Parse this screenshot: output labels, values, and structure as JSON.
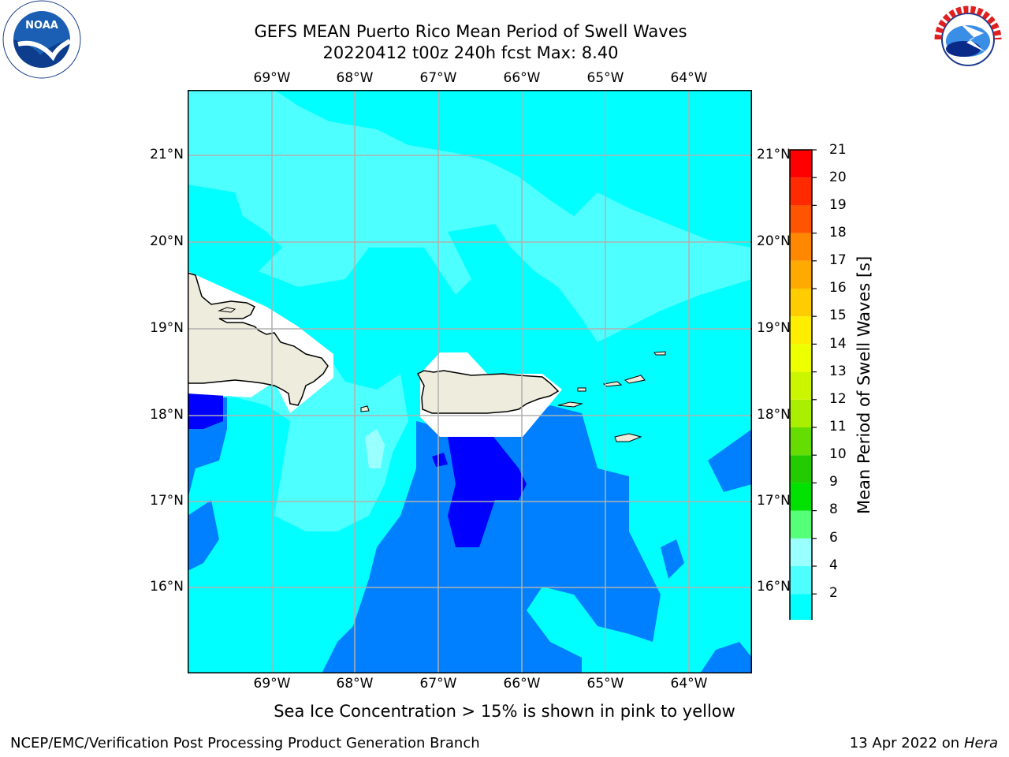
{
  "title": {
    "line1": "GEFS MEAN Puerto Rico Mean Period of Swell Waves",
    "line2": "20220412 t00z 240h fcst   Max: 8.40"
  },
  "logos": {
    "left": {
      "name": "noaa-logo",
      "text": "NOAA",
      "ring_text": "NATIONAL OCEANIC AND ATMOSPHERIC ADMINISTRATION · U.S. DEPARTMENT OF COMMERCE"
    },
    "right": {
      "name": "nws-logo",
      "ring_text": "NATIONAL WEATHER SERVICE"
    }
  },
  "map": {
    "lon_labels": [
      "69°W",
      "68°W",
      "67°W",
      "66°W",
      "65°W",
      "64°W"
    ],
    "lat_labels": [
      "21°N",
      "20°N",
      "19°N",
      "18°N",
      "17°N",
      "16°N"
    ],
    "colors": {
      "ocean_light": "#00ffff",
      "ocean_mid": "#4dffff",
      "ocean_pale": "#99ffff",
      "ocean_blue": "#0080ff",
      "ocean_deep": "#0000ff",
      "land": "#eeecdc",
      "grid": "#b0b0b0"
    }
  },
  "colorbar": {
    "label": "Mean Period of Swell Waves [s]",
    "ticks": [
      "21",
      "20",
      "19",
      "18",
      "17",
      "16",
      "15",
      "14",
      "13",
      "12",
      "11",
      "10",
      "9",
      "8",
      "6",
      "4",
      "2"
    ],
    "colors": [
      "#0000ff",
      "#0080ff",
      "#00ffff",
      "#4dffff",
      "#99ffff",
      "#55ff77",
      "#00e100",
      "#22cc00",
      "#66dd00",
      "#aaee00",
      "#ccf500",
      "#eeff00",
      "#ffee00",
      "#ffcc00",
      "#ffaa00",
      "#ff8800",
      "#ff5500",
      "#ff2a00",
      "#ff0000"
    ]
  },
  "note": "Sea Ice Concentration > 15% is shown in pink to yellow",
  "footer": {
    "left": "NCEP/EMC/Verification Post Processing Product Generation Branch",
    "right_date": "13 Apr 2022 on ",
    "right_host": "Hera"
  }
}
